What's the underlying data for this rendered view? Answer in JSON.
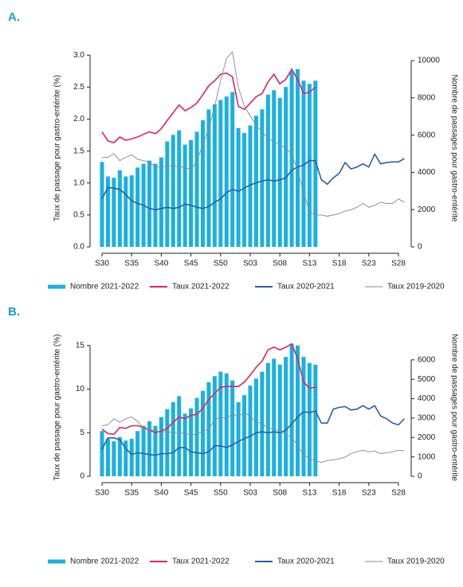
{
  "chart_data": [
    {
      "type": "combo",
      "label": "A.",
      "ylabel": "Taux de passage pour gastro-entérite (%)",
      "y2label": "Nombre de passages pour gastro-entérite",
      "categories": [
        "S30",
        null,
        null,
        null,
        null,
        "S35",
        null,
        null,
        null,
        null,
        "S40",
        null,
        null,
        null,
        null,
        "S45",
        null,
        null,
        null,
        null,
        "S50",
        null,
        null,
        null,
        null,
        "S03",
        null,
        null,
        null,
        null,
        "S08",
        null,
        null,
        null,
        null,
        "S13",
        null,
        null,
        null,
        null,
        "S18",
        null,
        null,
        null,
        null,
        "S23",
        null,
        null,
        null,
        null,
        "S28",
        null
      ],
      "ylim": [
        0,
        3.09
      ],
      "yticks": [
        {
          "value": 0,
          "label": "0.0"
        },
        0.5,
        {
          "value": 1,
          "label": "1.0"
        },
        1.5,
        {
          "value": 2,
          "label": "2.0"
        },
        2.5,
        {
          "value": 3,
          "label": "3.0"
        }
      ],
      "y2lim": [
        0,
        10600
      ],
      "y2ticks": [
        0,
        2000,
        4000,
        6000,
        8000,
        10000
      ],
      "legend": "bottom",
      "series": [
        {
          "name": "Nombre 2021-2022",
          "type": "bar",
          "axis": "y2",
          "color": "#1ab0e0",
          "values": [
            4560,
            3780,
            3710,
            4120,
            3780,
            3840,
            4260,
            4460,
            4630,
            4460,
            4800,
            5660,
            6010,
            6250,
            5490,
            5730,
            6180,
            6800,
            7380,
            7650,
            7890,
            8070,
            8310,
            6380,
            6110,
            6520,
            7040,
            7380,
            8170,
            8410,
            8000,
            8580,
            9440,
            9540,
            8920,
            8750,
            8920,
            null,
            null,
            null,
            null,
            null,
            null,
            null,
            null,
            null,
            null,
            null,
            null,
            null,
            null,
            null
          ]
        },
        {
          "name": "Taux 2021-2022",
          "type": "line",
          "color": "#e0245e",
          "values": [
            1.8,
            1.66,
            1.63,
            1.72,
            1.67,
            1.69,
            1.72,
            1.76,
            1.8,
            1.77,
            1.85,
            1.98,
            2.1,
            2.22,
            2.13,
            2.18,
            2.25,
            2.38,
            2.52,
            2.6,
            2.7,
            2.72,
            2.66,
            2.2,
            2.15,
            2.25,
            2.35,
            2.4,
            2.58,
            2.7,
            2.55,
            2.62,
            2.78,
            2.62,
            2.4,
            2.42,
            2.5,
            null,
            null,
            null,
            null,
            null,
            null,
            null,
            null,
            null,
            null,
            null,
            null,
            null,
            null,
            null
          ]
        },
        {
          "name": "Taux 2020-2021",
          "type": "line",
          "color": "#2a5fa8",
          "values": [
            0.75,
            0.93,
            0.92,
            0.9,
            0.82,
            0.72,
            0.68,
            0.65,
            0.6,
            0.58,
            0.6,
            0.62,
            0.6,
            0.62,
            0.67,
            0.65,
            0.62,
            0.6,
            0.63,
            0.7,
            0.75,
            0.85,
            0.9,
            0.87,
            0.92,
            0.97,
            1.0,
            1.03,
            1.05,
            1.03,
            1.05,
            1.08,
            1.2,
            1.25,
            1.28,
            1.35,
            1.35,
            1.05,
            0.98,
            1.08,
            1.15,
            1.32,
            1.22,
            1.25,
            1.3,
            1.25,
            1.45,
            1.3,
            1.32,
            1.33,
            1.33,
            1.38
          ]
        },
        {
          "name": "Taux 2019-2020",
          "type": "line",
          "color": "#888888",
          "values": [
            1.4,
            1.4,
            1.46,
            1.35,
            1.4,
            1.44,
            1.37,
            1.35,
            1.33,
            1.25,
            1.25,
            1.27,
            1.27,
            1.25,
            1.25,
            1.2,
            1.35,
            1.6,
            1.85,
            2.2,
            2.6,
            2.95,
            3.05,
            2.5,
            2.2,
            2.05,
            1.9,
            1.8,
            1.7,
            1.65,
            1.6,
            1.55,
            1.45,
            1.2,
            0.85,
            0.55,
            0.5,
            0.5,
            0.48,
            0.5,
            0.52,
            0.56,
            0.58,
            0.62,
            0.68,
            0.62,
            0.65,
            0.7,
            0.68,
            0.68,
            0.75,
            0.7
          ]
        }
      ]
    },
    {
      "type": "combo",
      "label": "B.",
      "ylabel": "Taux de passage pour gastro-entérite (%)",
      "y2label": "Nombre de passages pour gastro-entérite",
      "categories": [
        "S30",
        null,
        null,
        null,
        null,
        "S35",
        null,
        null,
        null,
        null,
        "S40",
        null,
        null,
        null,
        null,
        "S45",
        null,
        null,
        null,
        null,
        "S50",
        null,
        null,
        null,
        null,
        "S03",
        null,
        null,
        null,
        null,
        "S08",
        null,
        null,
        null,
        null,
        "S13",
        null,
        null,
        null,
        null,
        "S18",
        null,
        null,
        null,
        null,
        "S23",
        null,
        null,
        null,
        null,
        "S28",
        null
      ],
      "ylim": [
        0,
        15.8
      ],
      "yticks": [
        0,
        5,
        10,
        15
      ],
      "y2lim": [
        0,
        7100
      ],
      "y2ticks": [
        0,
        1000,
        2000,
        3000,
        4000,
        5000,
        6000
      ],
      "legend": "bottom",
      "series": [
        {
          "name": "Nombre 2021-2022",
          "type": "bar",
          "axis": "y2",
          "color": "#1ab0e0",
          "values": [
            2330,
            1930,
            1800,
            2020,
            1840,
            1930,
            2330,
            2600,
            2830,
            2600,
            3050,
            3460,
            3820,
            4130,
            3230,
            3500,
            4040,
            4400,
            4850,
            5160,
            5390,
            5300,
            4940,
            3820,
            4180,
            4670,
            5030,
            5390,
            5840,
            6060,
            5750,
            6150,
            6820,
            6740,
            6150,
            5840,
            5750,
            null,
            null,
            null,
            null,
            null,
            null,
            null,
            null,
            null,
            null,
            null,
            null,
            null,
            null,
            null
          ]
        },
        {
          "name": "Taux 2021-2022",
          "type": "line",
          "color": "#e0245e",
          "values": [
            5.4,
            4.9,
            4.8,
            5.6,
            5.5,
            5.8,
            5.8,
            5.6,
            5.3,
            5.0,
            5.2,
            5.5,
            6.2,
            6.8,
            6.6,
            7.0,
            7.1,
            7.8,
            8.8,
            9.5,
            10.2,
            10.3,
            10.3,
            10.3,
            10.8,
            11.6,
            12.5,
            13.2,
            14.5,
            14.8,
            14.5,
            14.8,
            15.2,
            13.5,
            10.8,
            10.1,
            10.2,
            null,
            null,
            null,
            null,
            null,
            null,
            null,
            null,
            null,
            null,
            null,
            null,
            null,
            null,
            null
          ]
        },
        {
          "name": "Taux 2020-2021",
          "type": "line",
          "color": "#2a5fa8",
          "values": [
            3.1,
            4.4,
            4.4,
            4.2,
            3.2,
            2.5,
            2.7,
            2.6,
            2.5,
            2.4,
            2.6,
            2.6,
            2.7,
            3.3,
            3.3,
            2.8,
            2.7,
            2.6,
            2.8,
            3.5,
            3.5,
            3.3,
            3.6,
            4.0,
            4.3,
            4.6,
            5.0,
            5.1,
            5.0,
            5.1,
            5.0,
            5.3,
            6.0,
            6.8,
            7.4,
            7.3,
            7.5,
            6.1,
            6.1,
            7.7,
            7.9,
            8.0,
            7.6,
            7.7,
            8.1,
            7.7,
            8.1,
            6.9,
            6.6,
            6.1,
            5.9,
            6.6
          ]
        },
        {
          "name": "Taux 2019-2020",
          "type": "line",
          "color": "#888888",
          "values": [
            5.8,
            5.9,
            6.6,
            6.2,
            6.6,
            6.8,
            6.3,
            5.5,
            5.3,
            5.3,
            5.0,
            5.2,
            4.9,
            5.0,
            4.9,
            4.8,
            4.8,
            5.2,
            5.4,
            6.5,
            6.8,
            6.6,
            7.2,
            6.8,
            7.4,
            6.8,
            6.3,
            6.0,
            5.6,
            5.4,
            5.2,
            4.7,
            4.5,
            3.5,
            2.5,
            2.0,
            1.8,
            1.6,
            1.8,
            1.9,
            2.0,
            2.2,
            2.6,
            2.8,
            3.0,
            2.8,
            2.9,
            2.6,
            2.7,
            2.8,
            3.0,
            2.9
          ]
        }
      ]
    }
  ]
}
